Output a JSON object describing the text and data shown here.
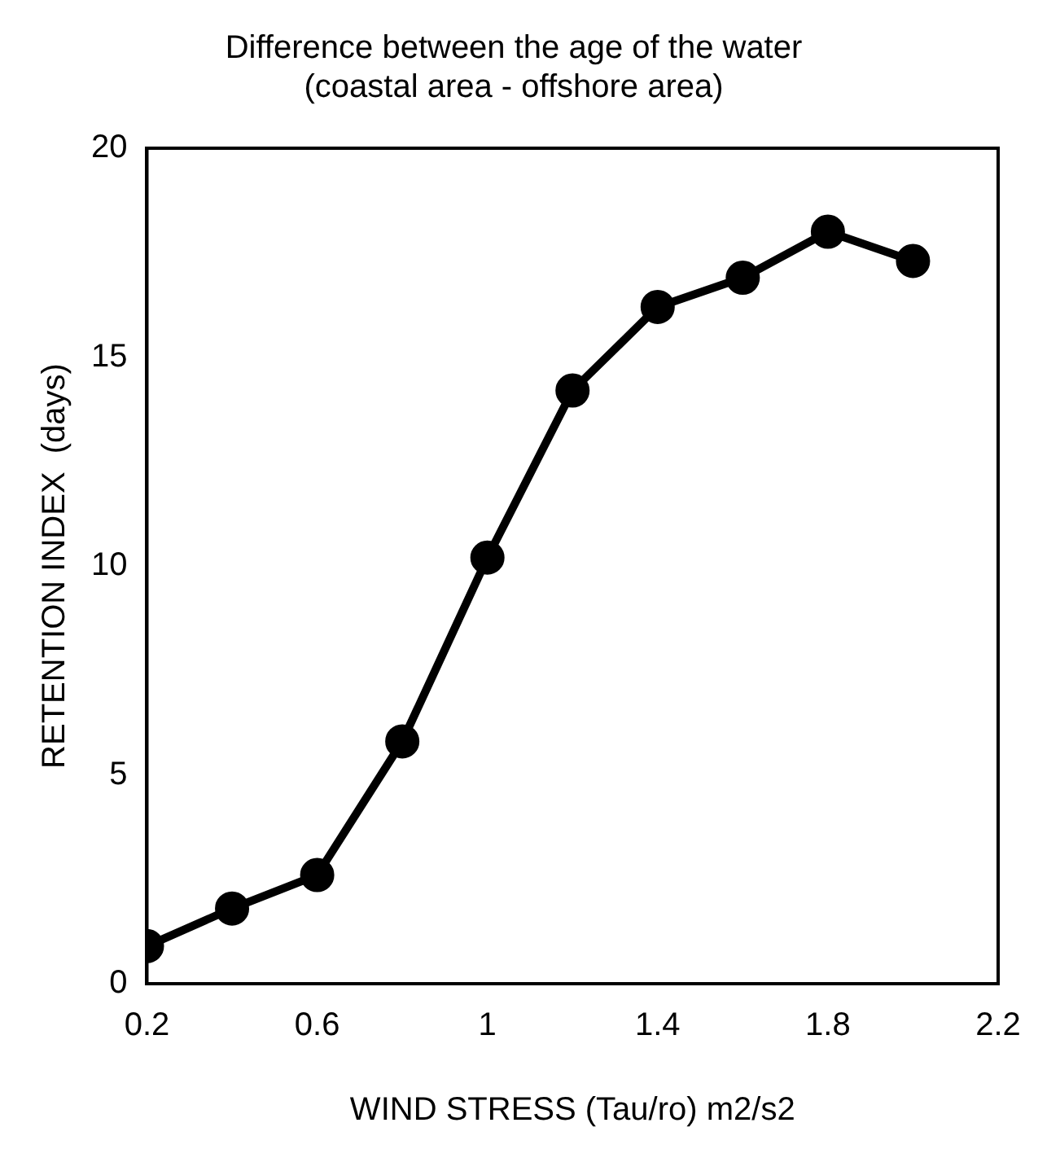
{
  "chart_data": {
    "type": "line",
    "title": "Difference between the age of the water\n(coastal area - offshore area)",
    "xlabel": "WIND STRESS (Tau/ro) m2/s2",
    "ylabel": "RETENTION INDEX  (days)",
    "x": [
      0.2,
      0.4,
      0.6,
      0.8,
      1.0,
      1.2,
      1.4,
      1.6,
      1.8,
      2.0
    ],
    "series": [
      {
        "color": "#000000",
        "values": [
          0.9,
          1.8,
          2.6,
          5.8,
          10.2,
          14.2,
          16.2,
          16.9,
          18.0,
          17.3
        ]
      }
    ],
    "xlim": [
      0.2,
      2.2
    ],
    "xticks": [
      0.2,
      0.6,
      1,
      1.4,
      1.8,
      2.2
    ],
    "ylim": [
      0,
      20
    ],
    "yticks": [
      0,
      5,
      10,
      15,
      20
    ],
    "grid": false,
    "legend": false,
    "marker": "circle",
    "line_style": "solid"
  }
}
